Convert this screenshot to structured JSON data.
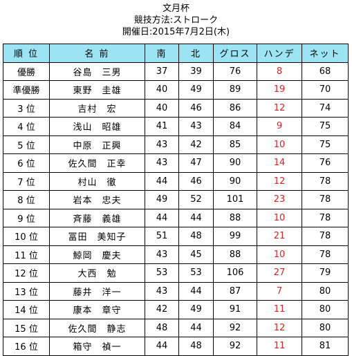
{
  "header": {
    "title": "文月杯",
    "method": "競技方法:ストローク",
    "date": "開催日:2015年7月2日(木)"
  },
  "table": {
    "columns": [
      "順 位",
      "名 前",
      "南",
      "北",
      "グロス",
      "ハンデ",
      "ネット"
    ],
    "rows": [
      {
        "rank": "優勝",
        "name": "谷島　三男",
        "south": "37",
        "north": "39",
        "gross": "76",
        "handicap": "8",
        "net": "68"
      },
      {
        "rank": "準優勝",
        "name": "東野　圭雄",
        "south": "40",
        "north": "49",
        "gross": "89",
        "handicap": "19",
        "net": "70"
      },
      {
        "rank": "3 位",
        "name": "吉村　宏",
        "south": "40",
        "north": "46",
        "gross": "86",
        "handicap": "12",
        "net": "74"
      },
      {
        "rank": "4 位",
        "name": "浅山　昭雄",
        "south": "41",
        "north": "43",
        "gross": "84",
        "handicap": "9",
        "net": "75"
      },
      {
        "rank": "5 位",
        "name": "中原　正興",
        "south": "43",
        "north": "42",
        "gross": "85",
        "handicap": "10",
        "net": "75"
      },
      {
        "rank": "6 位",
        "name": "佐久間　正幸",
        "south": "43",
        "north": "47",
        "gross": "90",
        "handicap": "14",
        "net": "76"
      },
      {
        "rank": "7 位",
        "name": "村山　徹",
        "south": "44",
        "north": "46",
        "gross": "90",
        "handicap": "12",
        "net": "78"
      },
      {
        "rank": "8 位",
        "name": "岩本　忠夫",
        "south": "49",
        "north": "52",
        "gross": "101",
        "handicap": "23",
        "net": "78"
      },
      {
        "rank": "9 位",
        "name": "斉藤　義雄",
        "south": "44",
        "north": "44",
        "gross": "88",
        "handicap": "10",
        "net": "78"
      },
      {
        "rank": "10 位",
        "name": "冨田　美知子",
        "south": "51",
        "north": "48",
        "gross": "99",
        "handicap": "21",
        "net": "78"
      },
      {
        "rank": "11 位",
        "name": "鯨岡　慶夫",
        "south": "43",
        "north": "45",
        "gross": "88",
        "handicap": "10",
        "net": "78"
      },
      {
        "rank": "12 位",
        "name": "大西　勉",
        "south": "53",
        "north": "53",
        "gross": "106",
        "handicap": "27",
        "net": "79"
      },
      {
        "rank": "13 位",
        "name": "藤井　洋一",
        "south": "43",
        "north": "44",
        "gross": "87",
        "handicap": "7",
        "net": "80"
      },
      {
        "rank": "14 位",
        "name": "康本　章守",
        "south": "42",
        "north": "49",
        "gross": "91",
        "handicap": "11",
        "net": "80"
      },
      {
        "rank": "15 位",
        "name": "佐久間　静志",
        "south": "48",
        "north": "44",
        "gross": "92",
        "handicap": "12",
        "net": "80"
      },
      {
        "rank": "16 位",
        "name": "箱守　禎一",
        "south": "44",
        "north": "48",
        "gross": "92",
        "handicap": "11",
        "net": "81"
      }
    ]
  },
  "colors": {
    "header_bg": "#9ce4f4",
    "handicap_text": "#e02020"
  }
}
